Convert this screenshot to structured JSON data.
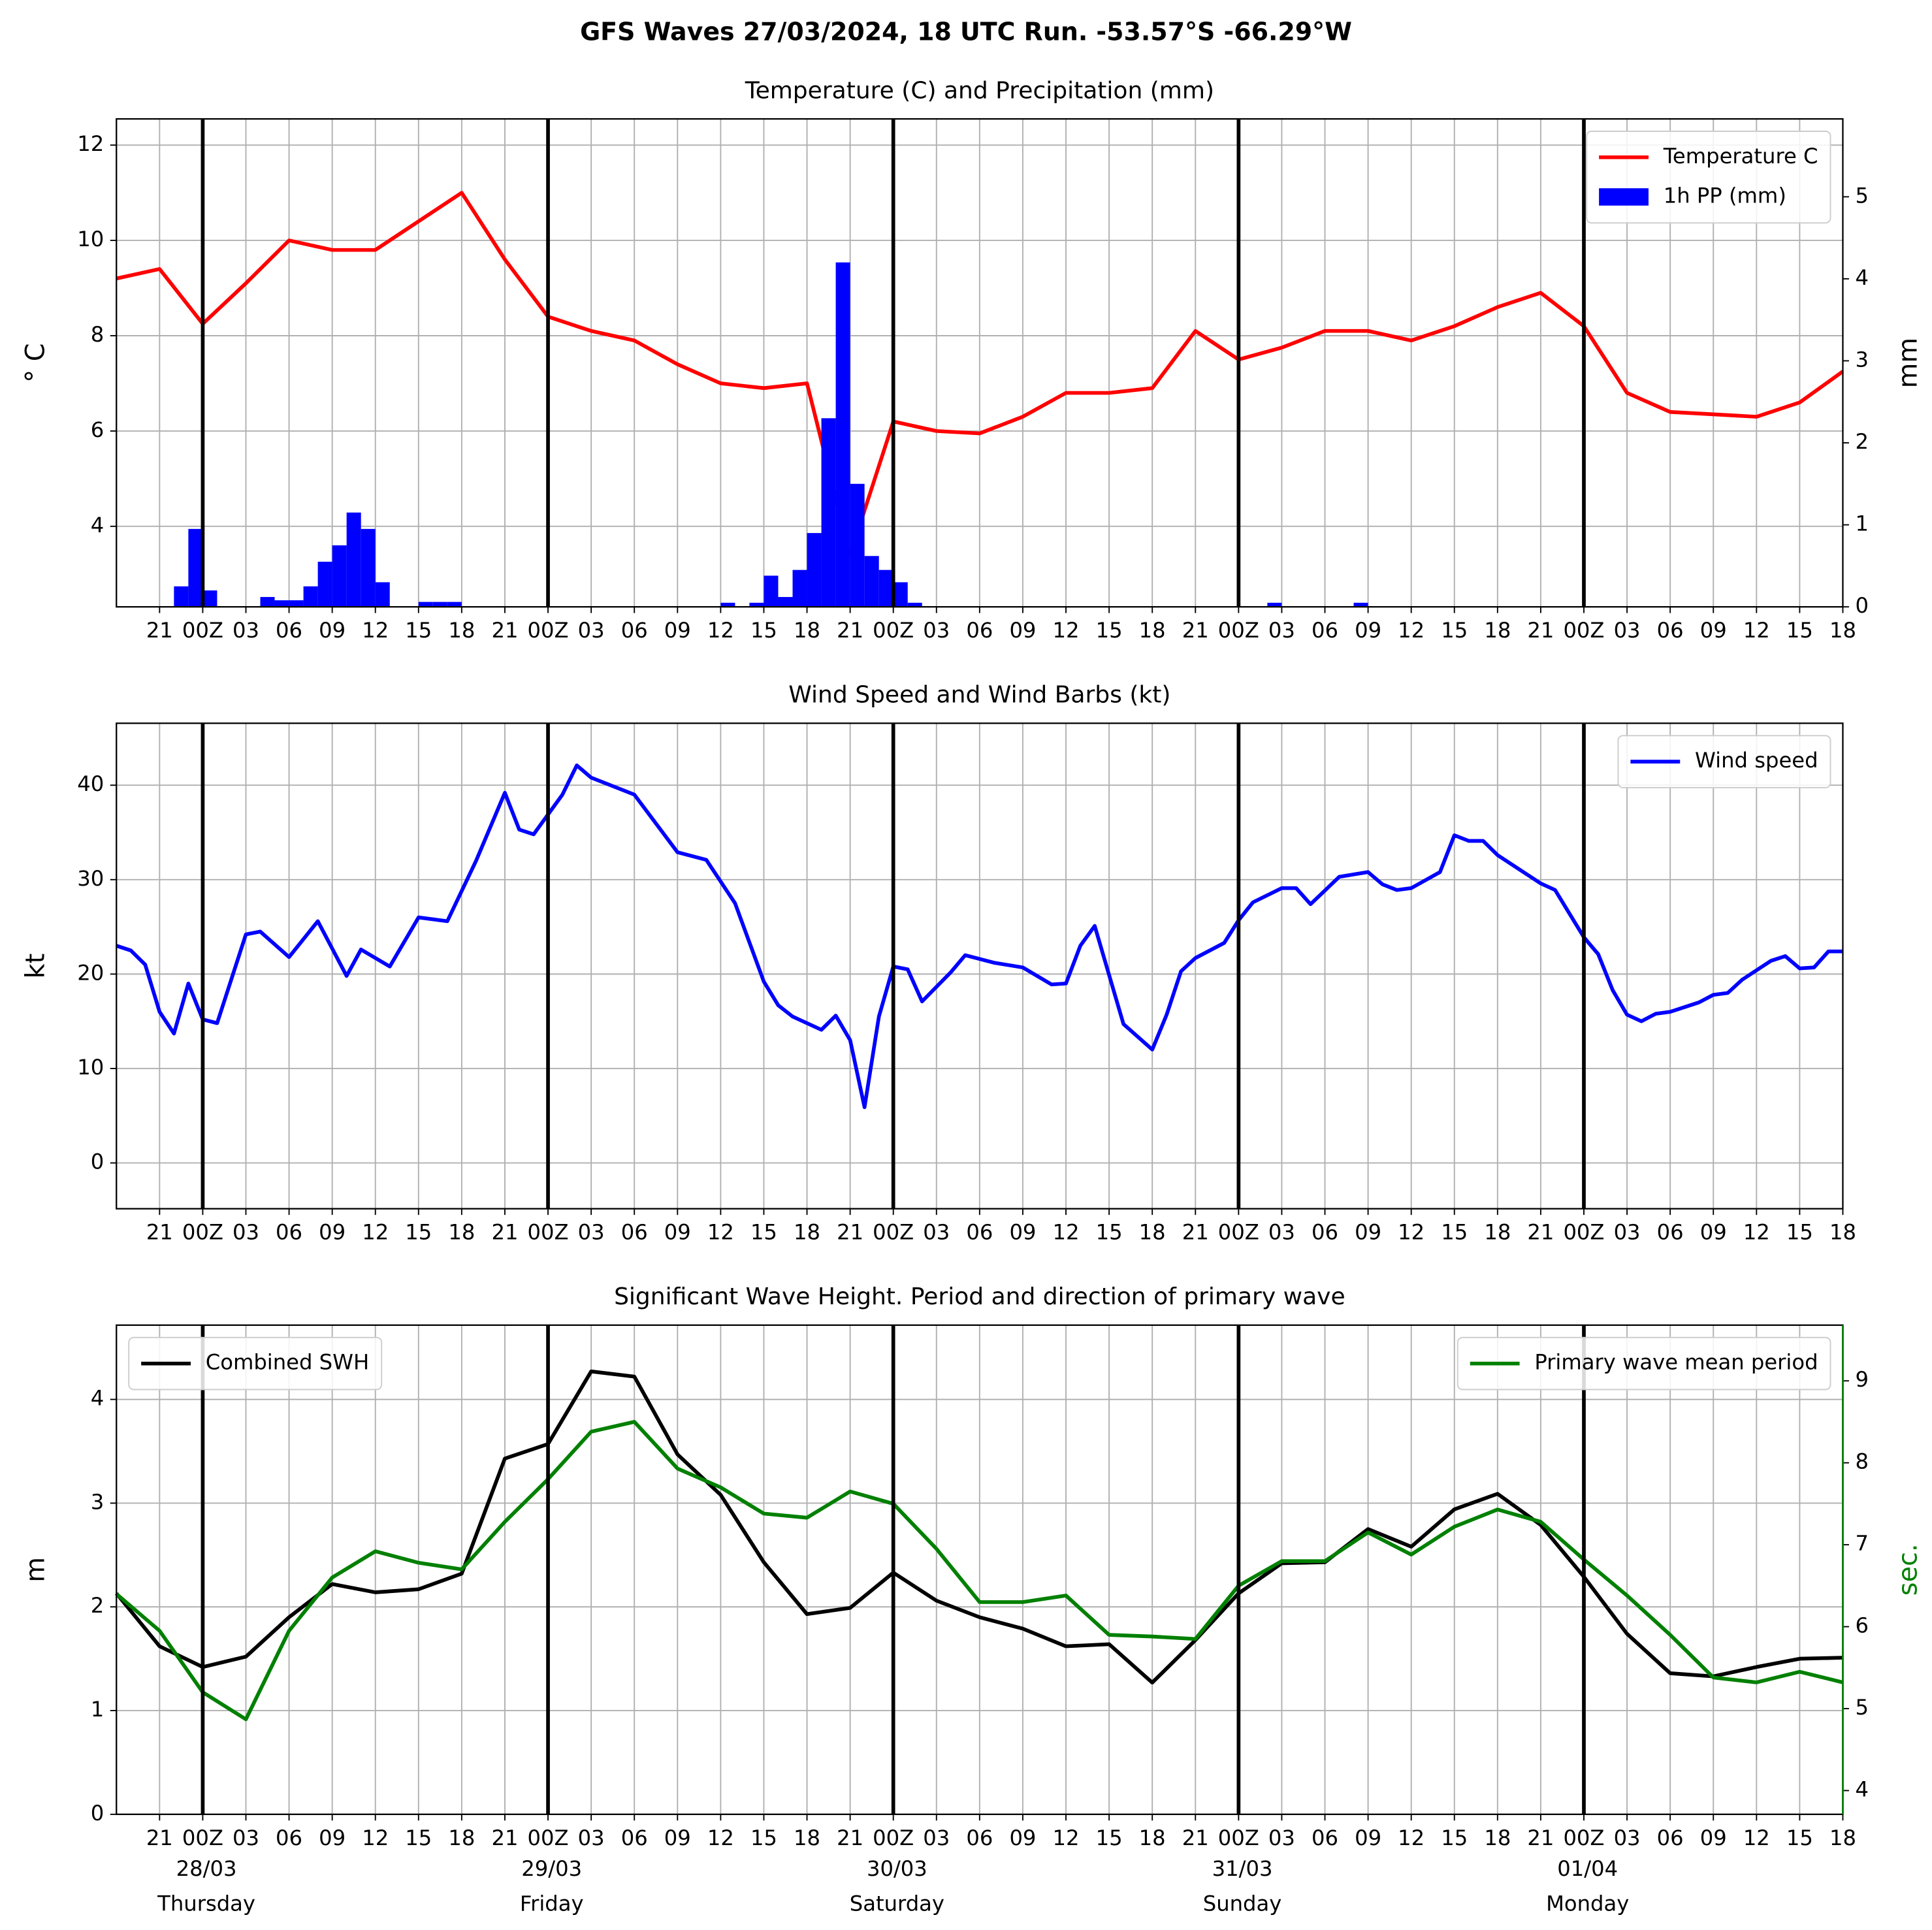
{
  "title": "GFS Waves 27/03/2024, 18 UTC Run. -53.57°S -66.29°W",
  "chart_data": [
    {
      "type": "line",
      "title": "Temperature (C) and Precipitation (mm)",
      "ylabel": "° C",
      "y2label": "mm",
      "xlim": [
        0,
        120
      ],
      "ylim": [
        2.31,
        12.55
      ],
      "y2lim": [
        0,
        5.95
      ],
      "yticks": [
        4,
        6,
        8,
        10,
        12
      ],
      "y2ticks": [
        0,
        1,
        2,
        3,
        4,
        5
      ],
      "xticks": [
        {
          "value": 3,
          "label": "21"
        },
        {
          "value": 6,
          "label": "00Z"
        },
        {
          "value": 9,
          "label": "03"
        },
        {
          "value": 12,
          "label": "06"
        },
        {
          "value": 15,
          "label": "09"
        },
        {
          "value": 18,
          "label": "12"
        },
        {
          "value": 21,
          "label": "15"
        },
        {
          "value": 24,
          "label": "18"
        },
        {
          "value": 27,
          "label": "21"
        },
        {
          "value": 30,
          "label": "00Z"
        },
        {
          "value": 33,
          "label": "03"
        },
        {
          "value": 36,
          "label": "06"
        },
        {
          "value": 39,
          "label": "09"
        },
        {
          "value": 42,
          "label": "12"
        },
        {
          "value": 45,
          "label": "15"
        },
        {
          "value": 48,
          "label": "18"
        },
        {
          "value": 51,
          "label": "21"
        },
        {
          "value": 54,
          "label": "00Z"
        },
        {
          "value": 57,
          "label": "03"
        },
        {
          "value": 60,
          "label": "06"
        },
        {
          "value": 63,
          "label": "09"
        },
        {
          "value": 66,
          "label": "12"
        },
        {
          "value": 69,
          "label": "15"
        },
        {
          "value": 72,
          "label": "18"
        },
        {
          "value": 75,
          "label": "21"
        },
        {
          "value": 78,
          "label": "00Z"
        },
        {
          "value": 81,
          "label": "03"
        },
        {
          "value": 84,
          "label": "06"
        },
        {
          "value": 87,
          "label": "09"
        },
        {
          "value": 90,
          "label": "12"
        },
        {
          "value": 93,
          "label": "15"
        },
        {
          "value": 96,
          "label": "18"
        },
        {
          "value": 99,
          "label": "21"
        },
        {
          "value": 102,
          "label": "00Z"
        },
        {
          "value": 105,
          "label": "03"
        },
        {
          "value": 108,
          "label": "06"
        },
        {
          "value": 111,
          "label": "09"
        },
        {
          "value": 114,
          "label": "12"
        },
        {
          "value": 117,
          "label": "15"
        },
        {
          "value": 120,
          "label": "18"
        }
      ],
      "day_lines": [
        6,
        30,
        54,
        78,
        102
      ],
      "grid": true,
      "series": [
        {
          "name": "Temperature C",
          "type": "line",
          "color": "#ff0000",
          "axis": "y",
          "legend_loc": "upper right",
          "x": [
            0,
            3,
            6,
            9,
            12,
            15,
            18,
            21,
            24,
            27,
            30,
            33,
            36,
            39,
            42,
            45,
            48,
            51,
            54,
            57,
            60,
            63,
            66,
            69,
            72,
            75,
            78,
            81,
            84,
            87,
            90,
            93,
            96,
            99,
            102,
            105,
            108,
            111,
            114,
            117,
            120
          ],
          "values": [
            9.2,
            9.4,
            8.25,
            9.1,
            10,
            9.8,
            9.8,
            10.4,
            11.0,
            9.6,
            8.4,
            8.1,
            7.9,
            7.4,
            7.0,
            6.9,
            7.0,
            3.4,
            6.2,
            6.0,
            5.95,
            6.3,
            6.8,
            6.8,
            6.9,
            8.1,
            7.5,
            7.75,
            8.1,
            8.1,
            7.9,
            8.2,
            8.6,
            8.9,
            8.2,
            6.8,
            6.4,
            6.35,
            6.3,
            6.6,
            7.25
          ]
        },
        {
          "name": "1h PP (mm)",
          "type": "bar",
          "color": "#0000ff",
          "axis": "y2",
          "legend_loc": "upper right",
          "x": [
            4,
            5,
            6,
            10,
            11,
            12,
            13,
            14,
            15,
            16,
            17,
            18,
            21,
            22,
            23,
            42,
            44,
            45,
            46,
            47,
            48,
            49,
            50,
            51,
            52,
            53,
            54,
            55,
            80,
            86
          ],
          "values": [
            0.25,
            0.95,
            0.2,
            0.12,
            0.08,
            0.08,
            0.25,
            0.55,
            0.75,
            1.15,
            0.95,
            0.3,
            0.06,
            0.06,
            0.06,
            0.05,
            0.05,
            0.38,
            0.12,
            0.45,
            0.9,
            2.3,
            4.2,
            1.5,
            0.62,
            0.45,
            0.3,
            0.05,
            0.05,
            0.05
          ]
        }
      ]
    },
    {
      "type": "line",
      "title": "Wind Speed and Wind Barbs (kt)",
      "ylabel": "kt",
      "xlim": [
        0,
        120
      ],
      "ylim": [
        -4.85,
        46.56
      ],
      "yticks": [
        0,
        10,
        20,
        30,
        40
      ],
      "xticks": [
        {
          "value": 3,
          "label": "21"
        },
        {
          "value": 6,
          "label": "00Z"
        },
        {
          "value": 9,
          "label": "03"
        },
        {
          "value": 12,
          "label": "06"
        },
        {
          "value": 15,
          "label": "09"
        },
        {
          "value": 18,
          "label": "12"
        },
        {
          "value": 21,
          "label": "15"
        },
        {
          "value": 24,
          "label": "18"
        },
        {
          "value": 27,
          "label": "21"
        },
        {
          "value": 30,
          "label": "00Z"
        },
        {
          "value": 33,
          "label": "03"
        },
        {
          "value": 36,
          "label": "06"
        },
        {
          "value": 39,
          "label": "09"
        },
        {
          "value": 42,
          "label": "12"
        },
        {
          "value": 45,
          "label": "15"
        },
        {
          "value": 48,
          "label": "18"
        },
        {
          "value": 51,
          "label": "21"
        },
        {
          "value": 54,
          "label": "00Z"
        },
        {
          "value": 57,
          "label": "03"
        },
        {
          "value": 60,
          "label": "06"
        },
        {
          "value": 63,
          "label": "09"
        },
        {
          "value": 66,
          "label": "12"
        },
        {
          "value": 69,
          "label": "15"
        },
        {
          "value": 72,
          "label": "18"
        },
        {
          "value": 75,
          "label": "21"
        },
        {
          "value": 78,
          "label": "00Z"
        },
        {
          "value": 81,
          "label": "03"
        },
        {
          "value": 84,
          "label": "06"
        },
        {
          "value": 87,
          "label": "09"
        },
        {
          "value": 90,
          "label": "12"
        },
        {
          "value": 93,
          "label": "15"
        },
        {
          "value": 96,
          "label": "18"
        },
        {
          "value": 99,
          "label": "21"
        },
        {
          "value": 102,
          "label": "00Z"
        },
        {
          "value": 105,
          "label": "03"
        },
        {
          "value": 108,
          "label": "06"
        },
        {
          "value": 111,
          "label": "09"
        },
        {
          "value": 114,
          "label": "12"
        },
        {
          "value": 117,
          "label": "15"
        },
        {
          "value": 120,
          "label": "18"
        }
      ],
      "day_lines": [
        6,
        30,
        54,
        78,
        102
      ],
      "grid": true,
      "series": [
        {
          "name": "Wind speed",
          "type": "line",
          "color": "#0000ff",
          "axis": "y",
          "legend_loc": "upper right",
          "x": [
            0,
            1,
            2,
            3,
            4,
            5,
            6,
            7,
            9,
            10,
            12,
            14,
            16,
            17,
            19,
            21,
            23,
            25,
            27,
            28,
            29,
            31,
            32,
            33,
            36,
            39,
            41,
            43,
            45,
            46,
            47,
            49,
            50,
            51,
            52,
            53,
            54,
            55,
            56,
            58,
            59,
            61,
            63,
            65,
            66,
            67,
            68,
            70,
            72,
            73,
            74,
            75,
            77,
            78,
            79,
            81,
            82,
            83,
            85,
            87,
            88,
            89,
            90,
            92,
            93,
            94,
            95,
            96,
            99,
            100,
            102,
            103,
            104,
            105,
            106,
            107,
            108,
            110,
            111,
            112,
            113,
            115,
            116,
            117,
            118,
            119,
            120
          ],
          "values": [
            23,
            22.5,
            21,
            16,
            13.7,
            19,
            15.2,
            14.8,
            24.2,
            24.5,
            21.8,
            25.6,
            19.8,
            22.6,
            20.8,
            26,
            25.6,
            32,
            39.2,
            35.3,
            34.8,
            39,
            42.1,
            40.8,
            39,
            32.9,
            32.1,
            27.5,
            19.2,
            16.7,
            15.5,
            14.1,
            15.6,
            13,
            5.9,
            15.5,
            20.8,
            20.5,
            17.1,
            20.2,
            22,
            21.2,
            20.7,
            18.9,
            19,
            23,
            25.1,
            14.7,
            12,
            15.7,
            20.3,
            21.7,
            23.3,
            25.7,
            27.6,
            29.1,
            29.1,
            27.4,
            30.3,
            30.8,
            29.5,
            28.9,
            29.1,
            30.8,
            34.7,
            34.1,
            34.1,
            32.6,
            29.6,
            28.9,
            23.9,
            22.1,
            18.3,
            15.7,
            15,
            15.8,
            16,
            17,
            17.8,
            18,
            19.4,
            21.4,
            21.9,
            20.6,
            20.7,
            22.4,
            22.4
          ]
        }
      ]
    },
    {
      "type": "line",
      "title": "Significant Wave Height. Period and direction of primary wave",
      "ylabel": "m",
      "y2label": "sec.",
      "y2label_color": "#008000",
      "xlim": [
        0,
        120
      ],
      "ylim": [
        0,
        4.716
      ],
      "y2lim": [
        3.71,
        9.68
      ],
      "yticks": [
        0,
        1,
        2,
        3,
        4
      ],
      "y2ticks": [
        4,
        5,
        6,
        7,
        8,
        9
      ],
      "xticks": [
        {
          "value": 3,
          "label": "21"
        },
        {
          "value": 6,
          "label": "00Z"
        },
        {
          "value": 9,
          "label": "03"
        },
        {
          "value": 12,
          "label": "06"
        },
        {
          "value": 15,
          "label": "09"
        },
        {
          "value": 18,
          "label": "12"
        },
        {
          "value": 21,
          "label": "15"
        },
        {
          "value": 24,
          "label": "18"
        },
        {
          "value": 27,
          "label": "21"
        },
        {
          "value": 30,
          "label": "00Z"
        },
        {
          "value": 33,
          "label": "03"
        },
        {
          "value": 36,
          "label": "06"
        },
        {
          "value": 39,
          "label": "09"
        },
        {
          "value": 42,
          "label": "12"
        },
        {
          "value": 45,
          "label": "15"
        },
        {
          "value": 48,
          "label": "18"
        },
        {
          "value": 51,
          "label": "21"
        },
        {
          "value": 54,
          "label": "00Z"
        },
        {
          "value": 57,
          "label": "03"
        },
        {
          "value": 60,
          "label": "06"
        },
        {
          "value": 63,
          "label": "09"
        },
        {
          "value": 66,
          "label": "12"
        },
        {
          "value": 69,
          "label": "15"
        },
        {
          "value": 72,
          "label": "18"
        },
        {
          "value": 75,
          "label": "21"
        },
        {
          "value": 78,
          "label": "00Z"
        },
        {
          "value": 81,
          "label": "03"
        },
        {
          "value": 84,
          "label": "06"
        },
        {
          "value": 87,
          "label": "09"
        },
        {
          "value": 90,
          "label": "12"
        },
        {
          "value": 93,
          "label": "15"
        },
        {
          "value": 96,
          "label": "18"
        },
        {
          "value": 99,
          "label": "21"
        },
        {
          "value": 102,
          "label": "00Z"
        },
        {
          "value": 105,
          "label": "03"
        },
        {
          "value": 108,
          "label": "06"
        },
        {
          "value": 111,
          "label": "09"
        },
        {
          "value": 114,
          "label": "12"
        },
        {
          "value": 117,
          "label": "15"
        },
        {
          "value": 120,
          "label": "18"
        }
      ],
      "day_lines": [
        6,
        30,
        54,
        78,
        102
      ],
      "grid": true,
      "day_labels": [
        {
          "value": 6,
          "date": "28/03",
          "weekday": "Thursday"
        },
        {
          "value": 30,
          "date": "29/03",
          "weekday": "Friday"
        },
        {
          "value": 54,
          "date": "30/03",
          "weekday": "Saturday"
        },
        {
          "value": 78,
          "date": "31/03",
          "weekday": "Sunday"
        },
        {
          "value": 102,
          "date": "01/04",
          "weekday": "Monday"
        }
      ],
      "series": [
        {
          "name": "Combined SWH",
          "type": "line",
          "color": "#000000",
          "axis": "y",
          "legend_loc": "upper left",
          "x": [
            0,
            3,
            6,
            9,
            12,
            15,
            18,
            21,
            24,
            27,
            30,
            33,
            36,
            39,
            42,
            45,
            48,
            51,
            54,
            57,
            60,
            63,
            66,
            69,
            72,
            75,
            78,
            81,
            84,
            87,
            90,
            93,
            96,
            99,
            102,
            105,
            108,
            111,
            114,
            117,
            120
          ],
          "values": [
            2.13,
            1.62,
            1.42,
            1.52,
            1.9,
            2.22,
            2.14,
            2.17,
            2.32,
            3.43,
            3.57,
            4.27,
            4.22,
            3.47,
            3.08,
            2.43,
            1.93,
            1.99,
            2.33,
            2.06,
            1.9,
            1.79,
            1.62,
            1.64,
            1.27,
            1.68,
            2.13,
            2.42,
            2.43,
            2.75,
            2.58,
            2.94,
            3.09,
            2.79,
            2.29,
            1.74,
            1.36,
            1.33,
            1.42,
            1.5,
            1.51
          ]
        },
        {
          "name": "Primary wave mean period",
          "type": "line",
          "color": "#008000",
          "axis": "y2",
          "legend_loc": "upper right",
          "x": [
            0,
            3,
            6,
            9,
            12,
            15,
            18,
            21,
            24,
            27,
            30,
            33,
            36,
            39,
            42,
            45,
            48,
            51,
            54,
            57,
            60,
            63,
            66,
            69,
            72,
            75,
            78,
            81,
            84,
            87,
            90,
            93,
            96,
            99,
            102,
            105,
            108,
            111,
            114,
            117,
            120
          ],
          "values": [
            6.4,
            5.95,
            5.2,
            4.87,
            5.95,
            6.6,
            6.92,
            6.78,
            6.7,
            7.28,
            7.8,
            8.38,
            8.5,
            7.93,
            7.7,
            7.38,
            7.33,
            7.65,
            7.5,
            6.95,
            6.3,
            6.3,
            6.38,
            5.9,
            5.88,
            5.85,
            6.5,
            6.8,
            6.8,
            7.15,
            6.88,
            7.22,
            7.43,
            7.28,
            6.82,
            6.38,
            5.9,
            5.38,
            5.32,
            5.45,
            5.32
          ]
        }
      ]
    }
  ]
}
